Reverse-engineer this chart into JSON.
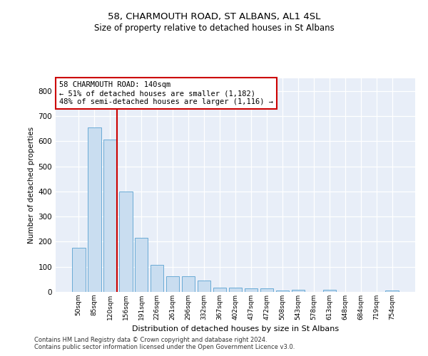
{
  "title": "58, CHARMOUTH ROAD, ST ALBANS, AL1 4SL",
  "subtitle": "Size of property relative to detached houses in St Albans",
  "xlabel": "Distribution of detached houses by size in St Albans",
  "ylabel": "Number of detached properties",
  "bar_color": "#c9ddf0",
  "bar_edge_color": "#6aabd6",
  "background_color": "#e8eef8",
  "grid_color": "#ffffff",
  "categories": [
    "50sqm",
    "85sqm",
    "120sqm",
    "156sqm",
    "191sqm",
    "226sqm",
    "261sqm",
    "296sqm",
    "332sqm",
    "367sqm",
    "402sqm",
    "437sqm",
    "472sqm",
    "508sqm",
    "543sqm",
    "578sqm",
    "613sqm",
    "648sqm",
    "684sqm",
    "719sqm",
    "754sqm"
  ],
  "values": [
    175,
    655,
    605,
    400,
    215,
    107,
    63,
    63,
    44,
    16,
    17,
    15,
    13,
    7,
    8,
    1,
    8,
    0,
    0,
    0,
    7
  ],
  "property_label": "58 CHARMOUTH ROAD: 140sqm",
  "pct_smaller": 51,
  "n_smaller": 1182,
  "pct_larger": 48,
  "n_larger": 1116,
  "vline_color": "#cc0000",
  "annotation_box_color": "#cc0000",
  "ylim": [
    0,
    850
  ],
  "yticks": [
    0,
    100,
    200,
    300,
    400,
    500,
    600,
    700,
    800
  ],
  "footer_line1": "Contains HM Land Registry data © Crown copyright and database right 2024.",
  "footer_line2": "Contains public sector information licensed under the Open Government Licence v3.0."
}
